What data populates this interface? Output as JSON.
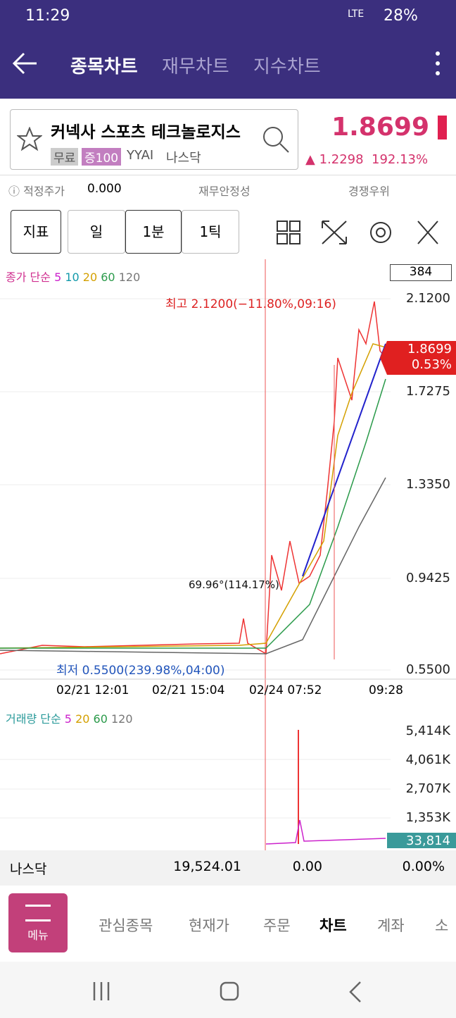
{
  "status": {
    "time": "11:29",
    "network": "LTE",
    "battery": "28%"
  },
  "header": {
    "tabs": [
      "종목차트",
      "재무차트",
      "지수차트"
    ]
  },
  "stock": {
    "name": "커넥사 스포츠 테크놀로지스",
    "tags": [
      "무료",
      "증100"
    ],
    "ticker": "YYAI",
    "market": "나스닥",
    "price": "1.8699",
    "change": "1.2298",
    "change_pct": "192.13%"
  },
  "info": {
    "fair_price_label": "적정주가",
    "fair_price": "0.000",
    "stability": "재무안정성",
    "competitive": "경쟁우위"
  },
  "toolbar": {
    "buttons": [
      "지표",
      "일",
      "1분",
      "1틱"
    ]
  },
  "chart": {
    "legend": "종가 단순",
    "ma": [
      "5",
      "10",
      "20",
      "60",
      "120"
    ],
    "count": "384",
    "y_labels": [
      "2.1200",
      "1.7275",
      "1.3350",
      "0.9425",
      "0.5500"
    ],
    "current_price": "1.8699",
    "current_pct": "0.53%",
    "high_note": "최고 2.1200(−11.80%,09:16)",
    "low_note": "최저 0.5500(239.98%,04:00)",
    "angle_note": "69.96°(114.17%)",
    "x_labels": [
      "02/21 12:01",
      "02/21 15:04",
      "02/24 07:52",
      "09:28"
    ]
  },
  "volume": {
    "legend": "거래량 단순",
    "ma": [
      "5",
      "20",
      "60",
      "120"
    ],
    "y_labels": [
      "5,414K",
      "4,061K",
      "2,707K",
      "1,353K"
    ],
    "current": "33,814"
  },
  "index_bar": {
    "name": "나스닥",
    "value": "19,524.01",
    "change": "0.00",
    "pct": "0.00%"
  },
  "bottom_nav": {
    "menu": "메뉴",
    "items": [
      "관심종목",
      "현재가",
      "주문",
      "차트",
      "계좌",
      "소"
    ]
  }
}
